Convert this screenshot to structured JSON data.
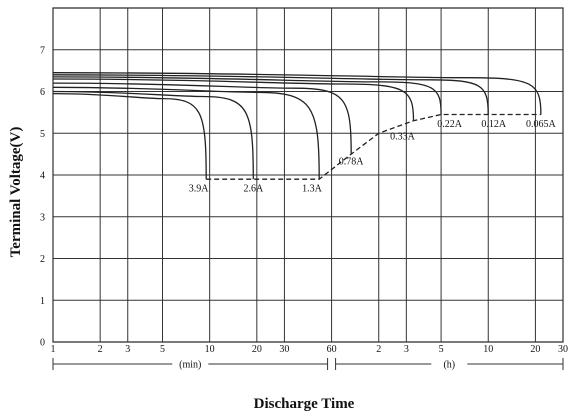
{
  "chart_data": {
    "type": "line",
    "ylabel": "Terminal Voltage(V)",
    "xlabel": "Discharge Time",
    "ylim": [
      0,
      8
    ],
    "y_ticks": [
      "0",
      "1",
      "2",
      "3",
      "4",
      "5",
      "6",
      "7"
    ],
    "x_scale": "log",
    "x_unit_min": "(min)",
    "x_unit_h": "(h)",
    "x_ticks": [
      {
        "label": "1",
        "min": 1
      },
      {
        "label": "2",
        "min": 2
      },
      {
        "label": "3",
        "min": 3
      },
      {
        "label": "5",
        "min": 5
      },
      {
        "label": "10",
        "min": 10
      },
      {
        "label": "20",
        "min": 20
      },
      {
        "label": "30",
        "min": 30
      },
      {
        "label": "60",
        "min": 60
      },
      {
        "label": "2",
        "min": 120
      },
      {
        "label": "3",
        "min": 180
      },
      {
        "label": "5",
        "min": 300
      },
      {
        "label": "10",
        "min": 600
      },
      {
        "label": "20",
        "min": 1200
      },
      {
        "label": "30",
        "min": 1800
      }
    ],
    "series": [
      {
        "name": "3.9A",
        "start_v": 5.95,
        "knee_min": 5,
        "end_min": 9.5,
        "end_v": 3.9
      },
      {
        "name": "2.6A",
        "start_v": 6.0,
        "knee_min": 9,
        "end_min": 19,
        "end_v": 3.9
      },
      {
        "name": "1.3A",
        "start_v": 6.1,
        "knee_min": 20,
        "end_min": 50,
        "end_v": 3.9
      },
      {
        "name": "0.78A",
        "start_v": 6.2,
        "knee_min": 35,
        "end_min": 80,
        "end_v": 4.5
      },
      {
        "name": "0.33A",
        "start_v": 6.3,
        "knee_min": 70,
        "end_min": 200,
        "end_v": 5.3
      },
      {
        "name": "0.22A",
        "start_v": 6.35,
        "knee_min": 120,
        "end_min": 300,
        "end_v": 5.45
      },
      {
        "name": "0.12A",
        "start_v": 6.4,
        "knee_min": 250,
        "end_min": 600,
        "end_v": 5.45
      },
      {
        "name": "0.065A",
        "start_v": 6.45,
        "knee_min": 450,
        "end_min": 1300,
        "end_v": 5.45
      }
    ],
    "cutoff_line": [
      {
        "min": 9.5,
        "v": 3.9
      },
      {
        "min": 50,
        "v": 3.9
      },
      {
        "min": 80,
        "v": 4.5
      },
      {
        "min": 120,
        "v": 5.0
      },
      {
        "min": 200,
        "v": 5.3
      },
      {
        "min": 300,
        "v": 5.45
      },
      {
        "min": 1300,
        "v": 5.45
      }
    ],
    "labels": [
      {
        "text": "3.9A",
        "min": 8.5,
        "v": 3.6
      },
      {
        "text": "2.6A",
        "min": 19,
        "v": 3.6
      },
      {
        "text": "1.3A",
        "min": 45,
        "v": 3.6
      },
      {
        "text": "0.78A",
        "min": 80,
        "v": 4.25
      },
      {
        "text": "0.33A",
        "min": 170,
        "v": 4.85
      },
      {
        "text": "0.22A",
        "min": 340,
        "v": 5.15
      },
      {
        "text": "0.12A",
        "min": 650,
        "v": 5.15
      },
      {
        "text": "0.065A",
        "min": 1300,
        "v": 5.15
      }
    ]
  }
}
